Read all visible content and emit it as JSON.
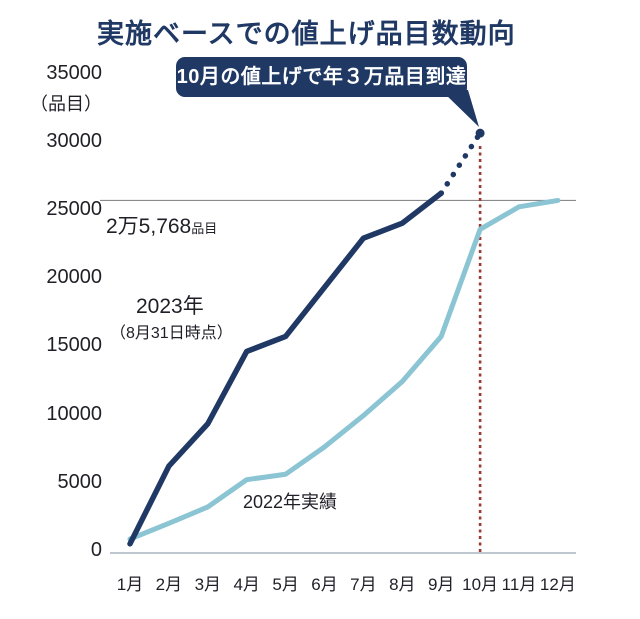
{
  "title": "実施ベースでの値上げ品目数動向",
  "callout": {
    "text": "10月の値上げで年３万品目到達"
  },
  "annotations": {
    "grid_value_text": "2万5,768",
    "grid_unit": "品目",
    "label_2023": "2023年",
    "label_2023_sub": "（8月31日時点）",
    "label_2022": "2022年実績"
  },
  "y_axis": {
    "unit_label": "（品目）",
    "ticks": [
      35000,
      30000,
      25000,
      20000,
      15000,
      10000,
      5000,
      0
    ]
  },
  "colors": {
    "navy": "#1f3864",
    "light_blue": "#8bc4d3",
    "red": "#9a3a32",
    "gridline": "#8a8a8a",
    "axis": "#a9b4c0",
    "text": "#1f1f28"
  },
  "chart_data": {
    "type": "line",
    "title": "実施ベースでの値上げ品目数動向",
    "x_categories": [
      "1月",
      "2月",
      "3月",
      "4月",
      "5月",
      "6月",
      "7月",
      "8月",
      "9月",
      "10月",
      "11月",
      "12月"
    ],
    "ylabel": "品目",
    "ylim": [
      0,
      35000
    ],
    "y_ticks": [
      0,
      5000,
      10000,
      15000,
      20000,
      25000,
      30000,
      35000
    ],
    "grid_reference": {
      "value": 25768,
      "label": "2万5,768品目"
    },
    "series": [
      {
        "name": "2023年（8月31日時点）",
        "color": "#1f3864",
        "solid_through": 9,
        "values": [
          600,
          6300,
          9400,
          14700,
          15800,
          19400,
          23000,
          24100,
          26300,
          30700
        ]
      },
      {
        "name": "2022年実績",
        "color": "#8bc4d3",
        "values": [
          950,
          2100,
          3300,
          5300,
          5700,
          7700,
          10000,
          12500,
          15800,
          23650,
          25300,
          25768
        ]
      }
    ],
    "vline": {
      "x_category": "10月",
      "color": "#9a3a32",
      "style": "dotted"
    },
    "annotation_callout": "10月の値上げで年３万品目到達",
    "legend_position": "inline-labels",
    "grid": "single-reference-line"
  }
}
